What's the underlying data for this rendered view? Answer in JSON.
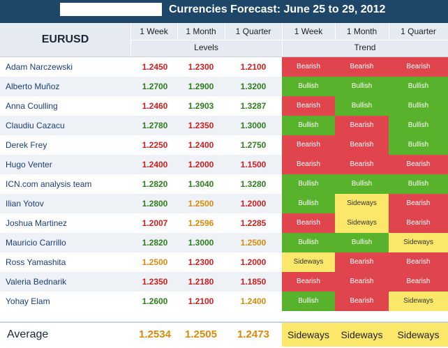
{
  "title": "Currencies Forecast: June 25 to 29, 2012",
  "pair": "EURUSD",
  "periods": [
    "1 Week",
    "1 Month",
    "1 Quarter"
  ],
  "group_levels": "Levels",
  "group_trend": "Trend",
  "colors": {
    "bearish": "#e0454e",
    "bullish": "#59b22b",
    "sideways": "#fbe86a",
    "level_bearish": "#cc1e1e",
    "level_bullish": "#2f7d1f",
    "level_sideways": "#d88a0a"
  },
  "rows": [
    {
      "name": "Adam Narczewski",
      "levels": [
        "1.2450",
        "1.2300",
        "1.2100"
      ],
      "trends": [
        "Bearish",
        "Bearish",
        "Bearish"
      ]
    },
    {
      "name": "Alberto Muñoz",
      "levels": [
        "1.2700",
        "1.2900",
        "1.3200"
      ],
      "trends": [
        "Bullish",
        "Bullish",
        "Bullish"
      ]
    },
    {
      "name": "Anna Coulling",
      "levels": [
        "1.2460",
        "1.2903",
        "1.3287"
      ],
      "trends": [
        "Bearish",
        "Bullish",
        "Bullish"
      ]
    },
    {
      "name": "Claudiu Cazacu",
      "levels": [
        "1.2780",
        "1.2350",
        "1.3000"
      ],
      "trends": [
        "Bullish",
        "Bearish",
        "Bullish"
      ]
    },
    {
      "name": "Derek Frey",
      "levels": [
        "1.2250",
        "1.2400",
        "1.2750"
      ],
      "trends": [
        "Bearish",
        "Bearish",
        "Bullish"
      ]
    },
    {
      "name": "Hugo Venter",
      "levels": [
        "1.2400",
        "1.2000",
        "1.1500"
      ],
      "trends": [
        "Bearish",
        "Bearish",
        "Bearish"
      ]
    },
    {
      "name": "ICN.com analysis team",
      "levels": [
        "1.2820",
        "1.3040",
        "1.3280"
      ],
      "trends": [
        "Bullish",
        "Bullish",
        "Bullish"
      ]
    },
    {
      "name": "Ilian Yotov",
      "levels": [
        "1.2800",
        "1.2500",
        "1.2000"
      ],
      "trends": [
        "Bullish",
        "Sideways",
        "Bearish"
      ]
    },
    {
      "name": "Joshua Martinez",
      "levels": [
        "1.2007",
        "1.2596",
        "1.2285"
      ],
      "trends": [
        "Bearish",
        "Sideways",
        "Bearish"
      ]
    },
    {
      "name": "Mauricio Carrillo",
      "levels": [
        "1.2820",
        "1.3000",
        "1.2500"
      ],
      "trends": [
        "Bullish",
        "Bullish",
        "Sideways"
      ]
    },
    {
      "name": "Ross Yamashita",
      "levels": [
        "1.2500",
        "1.2300",
        "1.2000"
      ],
      "trends": [
        "Sideways",
        "Bearish",
        "Bearish"
      ]
    },
    {
      "name": "Valeria Bednarik",
      "levels": [
        "1.2350",
        "1.2180",
        "1.1850"
      ],
      "trends": [
        "Bearish",
        "Bearish",
        "Bearish"
      ]
    },
    {
      "name": "Yohay Elam",
      "levels": [
        "1.2600",
        "1.2100",
        "1.2400"
      ],
      "trends": [
        "Bullish",
        "Bearish",
        "Sideways"
      ]
    }
  ],
  "average": {
    "label": "Average",
    "levels": [
      "1.2534",
      "1.2505",
      "1.2473"
    ],
    "trends": [
      "Sideways",
      "Sideways",
      "Sideways"
    ]
  }
}
